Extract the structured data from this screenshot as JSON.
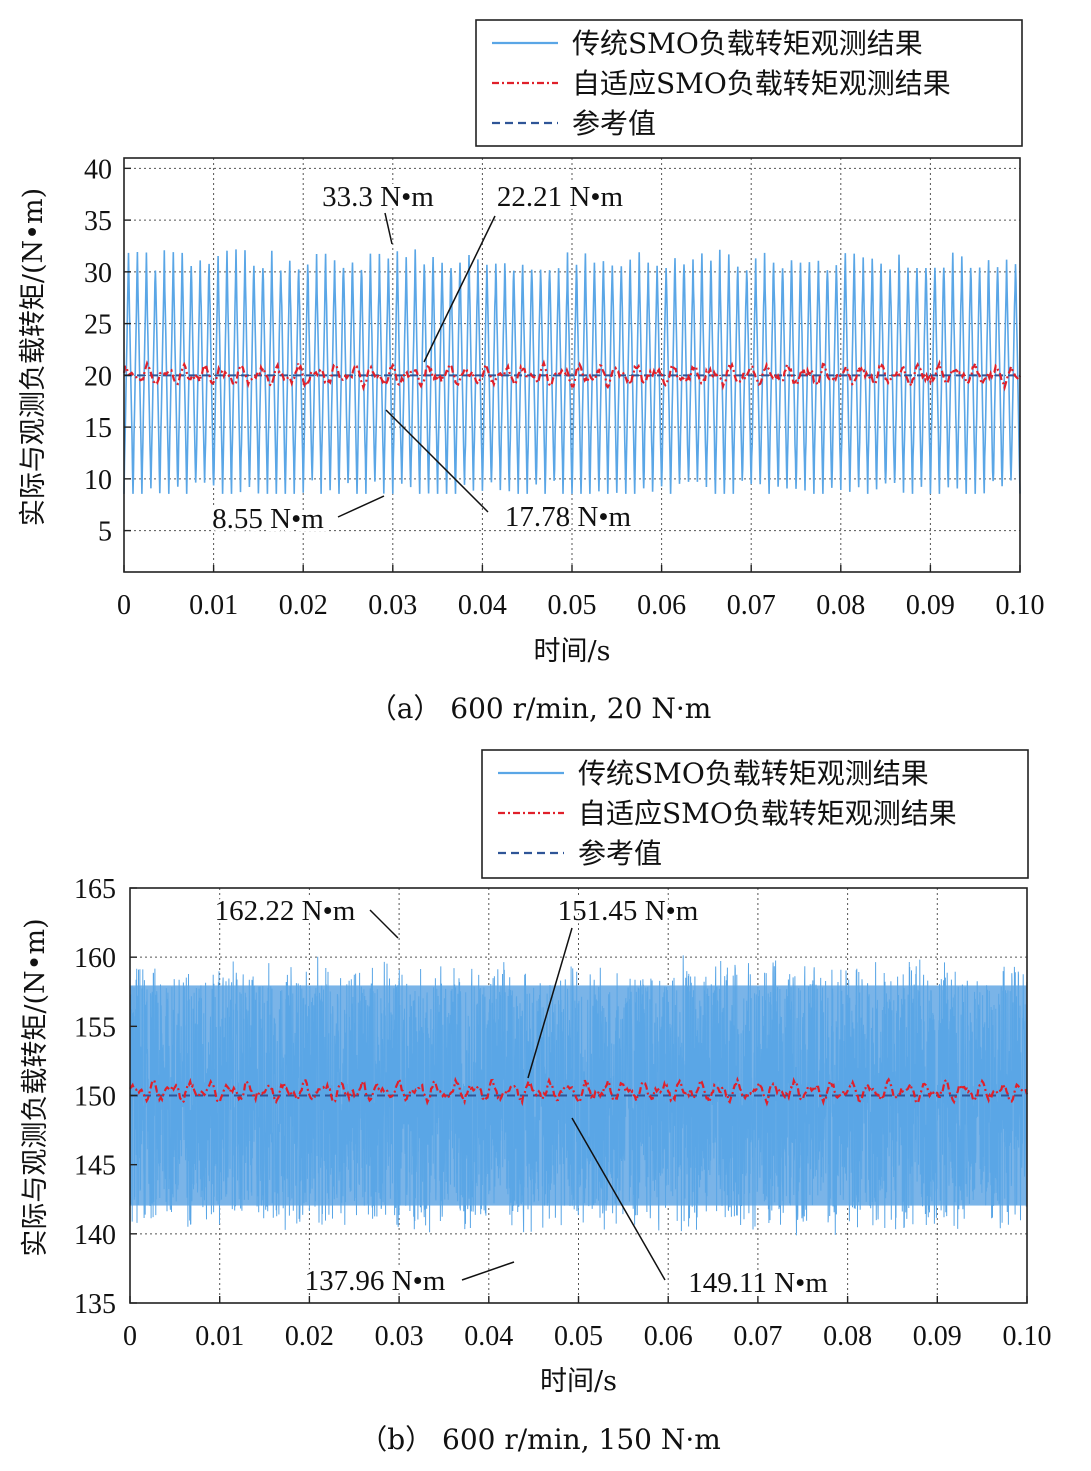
{
  "chart_data": [
    {
      "type": "line",
      "caption": "（a） 600 r/min, 20 N·m",
      "xlabel": "时间/s",
      "ylabel": "实际与观测负载转矩/(N•m)",
      "xlim": [
        0,
        0.1
      ],
      "ylim": [
        1,
        41
      ],
      "x_ticks": [
        0,
        0.01,
        0.02,
        0.03,
        0.04,
        0.05,
        0.06,
        0.07,
        0.08,
        0.09,
        0.1
      ],
      "x_tick_labels": [
        "0",
        "0.01",
        "0.02",
        "0.03",
        "0.04",
        "0.05",
        "0.06",
        "0.07",
        "0.08",
        "0.09",
        "0.10"
      ],
      "y_ticks": [
        5,
        10,
        15,
        20,
        25,
        30,
        35,
        40
      ],
      "y_tick_labels": [
        "5",
        "10",
        "15",
        "20",
        "25",
        "30",
        "35",
        "40"
      ],
      "grid": true,
      "legend_position": "above-right",
      "series": [
        {
          "name": "传统SMO负载转矩观测结果",
          "color": "#5aa6e6",
          "style": "solid",
          "center": 20,
          "amplitude": 11.5,
          "period": 0.001,
          "min": 8.55,
          "max": 33.3
        },
        {
          "name": "自适应SMO负载转矩观测结果",
          "color": "#e0202a",
          "style": "dash-dot",
          "center": 20,
          "amplitude": 1.1,
          "min": 17.78,
          "max": 22.21
        },
        {
          "name": "参考值",
          "color": "#2f5597",
          "style": "dashed",
          "value": 20
        }
      ],
      "annotations": [
        {
          "text": "33.3 N•m",
          "x": 0.0297,
          "y": 33.3
        },
        {
          "text": "22.21 N•m",
          "x": 0.0335,
          "y": 22.21
        },
        {
          "text": "8.55 N•m",
          "x": 0.0285,
          "y": 8.55
        },
        {
          "text": "17.78 N•m",
          "x": 0.029,
          "y": 17.78
        }
      ]
    },
    {
      "type": "line",
      "caption": "（b） 600 r/min, 150 N·m",
      "xlabel": "时间/s",
      "ylabel": "实际与观测负载转矩/(N•m)",
      "xlim": [
        0,
        0.1
      ],
      "ylim": [
        135,
        165
      ],
      "x_ticks": [
        0,
        0.01,
        0.02,
        0.03,
        0.04,
        0.05,
        0.06,
        0.07,
        0.08,
        0.09,
        0.1
      ],
      "x_tick_labels": [
        "0",
        "0.01",
        "0.02",
        "0.03",
        "0.04",
        "0.05",
        "0.06",
        "0.07",
        "0.08",
        "0.09",
        "0.10"
      ],
      "y_ticks": [
        135,
        140,
        145,
        150,
        155,
        160,
        165
      ],
      "y_tick_labels": [
        "135",
        "140",
        "145",
        "150",
        "155",
        "160",
        "165"
      ],
      "grid": true,
      "legend_position": "above-right",
      "series": [
        {
          "name": "传统SMO负载转矩观测结果",
          "color": "#5aa6e6",
          "style": "solid",
          "center": 150,
          "amplitude": 10.2,
          "period": 0.0002,
          "min": 137.96,
          "max": 162.22
        },
        {
          "name": "自适应SMO负载转矩观测结果",
          "color": "#e0202a",
          "style": "dash-dot",
          "center": 150.3,
          "amplitude": 0.8,
          "min": 149.11,
          "max": 151.45
        },
        {
          "name": "参考值",
          "color": "#2f5597",
          "style": "dashed",
          "value": 150
        }
      ],
      "annotations": [
        {
          "text": "162.22 N•m",
          "x": 0.0295,
          "y": 162.22
        },
        {
          "text": "151.45 N•m",
          "x": 0.0445,
          "y": 151.45
        },
        {
          "text": "137.96 N•m",
          "x": 0.0435,
          "y": 137.96
        },
        {
          "text": "149.11 N•m",
          "x": 0.049,
          "y": 149.11
        }
      ]
    }
  ]
}
